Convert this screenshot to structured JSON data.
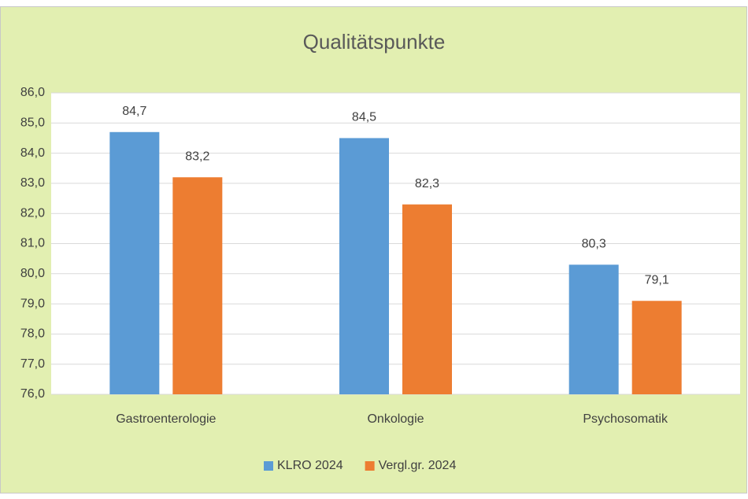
{
  "chart_data": {
    "type": "bar",
    "title": "Qualitätspunkte",
    "categories": [
      "Gastroenterologie",
      "Onkologie",
      "Psychosomatik"
    ],
    "series": [
      {
        "name": "KLRO 2024",
        "color": "#5b9bd5",
        "values": [
          84.7,
          84.5,
          80.3
        ],
        "value_labels": [
          "84,7",
          "84,5",
          "80,3"
        ]
      },
      {
        "name": "Vergl.gr. 2024",
        "color": "#ed7d31",
        "values": [
          83.2,
          82.3,
          79.1
        ],
        "value_labels": [
          "83,2",
          "82,3",
          "79,1"
        ]
      }
    ],
    "ylim": [
      76,
      86
    ],
    "yticks": [
      {
        "value": 76,
        "label": "76,0"
      },
      {
        "value": 77,
        "label": "77,0"
      },
      {
        "value": 78,
        "label": "78,0"
      },
      {
        "value": 79,
        "label": "79,0"
      },
      {
        "value": 80,
        "label": "80,0"
      },
      {
        "value": 81,
        "label": "81,0"
      },
      {
        "value": 82,
        "label": "82,0"
      },
      {
        "value": 83,
        "label": "83,0"
      },
      {
        "value": 84,
        "label": "84,0"
      },
      {
        "value": 85,
        "label": "85,0"
      },
      {
        "value": 86,
        "label": "86,0"
      }
    ],
    "grid": true,
    "legend": "bottom"
  }
}
